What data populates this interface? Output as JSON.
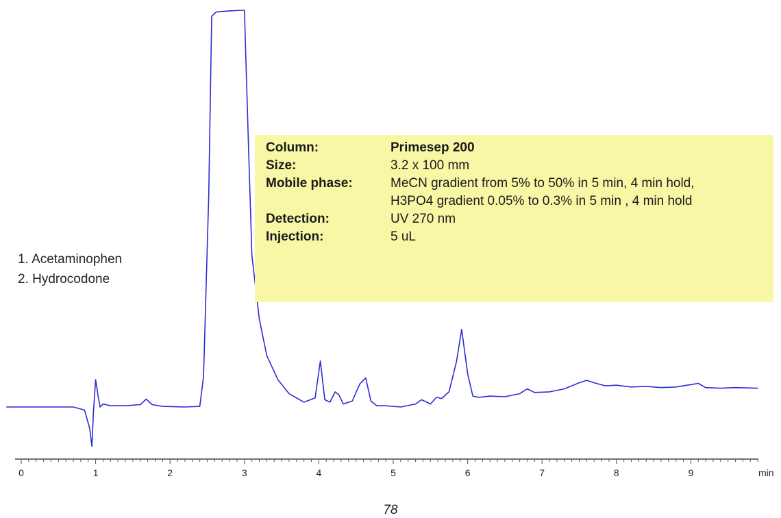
{
  "chart_data": {
    "type": "line",
    "title": "",
    "xlabel": "min",
    "ylabel": "",
    "xlim": [
      -0.2,
      9.9
    ],
    "ylim": [
      -0.9,
      6.6
    ],
    "x_ticks": [
      0,
      1,
      2,
      3,
      4,
      5,
      6,
      7,
      8,
      9
    ],
    "grid": false,
    "legend_position": "left",
    "peak_labels": [
      "1. Acetaminophen",
      "2. Hydrocodone"
    ],
    "line_color": "#2b2bd6",
    "series": [
      {
        "values_note": "",
        "x": [
          -0.2,
          0.7,
          0.85,
          0.92,
          0.95,
          0.97,
          1.0,
          1.03,
          1.06,
          1.1,
          1.2,
          1.4,
          1.6,
          1.68,
          1.76,
          1.9,
          2.2,
          2.4,
          2.45,
          2.52,
          2.56,
          2.6,
          2.62,
          2.7,
          2.8,
          2.95,
          3.0,
          3.05,
          3.1,
          3.2,
          3.3,
          3.45,
          3.6,
          3.8,
          3.95,
          4.02,
          4.08,
          4.15,
          4.22,
          4.27,
          4.33,
          4.45,
          4.55,
          4.63,
          4.7,
          4.78,
          4.9,
          5.1,
          5.3,
          5.38,
          5.45,
          5.5,
          5.58,
          5.65,
          5.75,
          5.85,
          5.92,
          6.0,
          6.07,
          6.15,
          6.3,
          6.5,
          6.7,
          6.8,
          6.9,
          7.1,
          7.3,
          7.5,
          7.6,
          7.7,
          7.85,
          8.0,
          8.2,
          8.4,
          8.6,
          8.8,
          9.0,
          9.1,
          9.2,
          9.4,
          9.6,
          9.9
        ],
        "y": [
          0.0,
          0.0,
          -0.05,
          -0.35,
          -0.65,
          -0.1,
          0.45,
          0.2,
          0.0,
          0.05,
          0.02,
          0.02,
          0.04,
          0.13,
          0.04,
          0.01,
          0.0,
          0.01,
          0.5,
          3.5,
          6.45,
          6.5,
          6.52,
          6.53,
          6.54,
          6.55,
          6.55,
          4.5,
          2.5,
          1.45,
          0.85,
          0.45,
          0.22,
          0.08,
          0.15,
          0.76,
          0.12,
          0.08,
          0.25,
          0.2,
          0.05,
          0.1,
          0.38,
          0.48,
          0.1,
          0.02,
          0.02,
          0.0,
          0.05,
          0.12,
          0.08,
          0.05,
          0.16,
          0.14,
          0.25,
          0.75,
          1.28,
          0.55,
          0.18,
          0.16,
          0.18,
          0.17,
          0.22,
          0.3,
          0.24,
          0.25,
          0.3,
          0.4,
          0.44,
          0.4,
          0.35,
          0.36,
          0.33,
          0.34,
          0.32,
          0.33,
          0.37,
          0.39,
          0.32,
          0.31,
          0.32,
          0.31
        ]
      }
    ]
  },
  "legend": {
    "item1": "1. Acetaminophen",
    "item2": "2. Hydrocodone"
  },
  "conditions": {
    "column_label": "Column:",
    "column_value": "Primesep 200",
    "size_label": "Size:",
    "size_value": "3.2 x 100 mm",
    "mobile_phase_label": "Mobile phase:",
    "mobile_phase_value_1": "MeCN gradient from 5% to 50% in 5 min, 4 min hold,",
    "mobile_phase_value_2": "H3PO4 gradient 0.05% to 0.3% in 5 min , 4 min hold",
    "detection_label": "Detection:",
    "detection_value": "UV 270 nm",
    "injection_label": "Injection:",
    "injection_value": "5 uL"
  },
  "footer": {
    "page_number": "78"
  }
}
